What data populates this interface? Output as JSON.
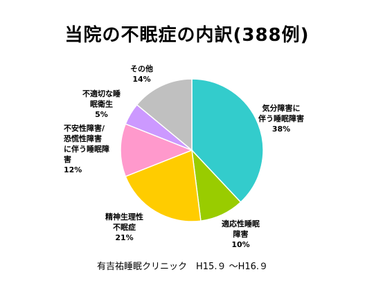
{
  "title": "当院の不眠症の内訳(388例)",
  "footer": "有吉祐睡眠クリニック　H15.９ ～H16.９",
  "chart_data": {
    "type": "pie",
    "start_angle_deg": 0,
    "direction": "clockwise",
    "slices": [
      {
        "label_lines": [
          "気分障害に",
          "伴う睡眠障害"
        ],
        "pct_label": "38%",
        "value": 38,
        "color": "#33CCCC"
      },
      {
        "label_lines": [
          "適応性睡眠",
          "障害"
        ],
        "pct_label": "10%",
        "value": 10,
        "color": "#99CC00"
      },
      {
        "label_lines": [
          "精神生理性",
          "不眠症"
        ],
        "pct_label": "21%",
        "value": 21,
        "color": "#FFCC00"
      },
      {
        "label_lines": [
          "不安性障害/",
          "恐慌性障害",
          "に伴う睡眠障",
          "害"
        ],
        "pct_label": "12%",
        "value": 12,
        "color": "#FF99CC"
      },
      {
        "label_lines": [
          "不適切な睡",
          "眠衛生"
        ],
        "pct_label": "5%",
        "value": 5,
        "color": "#CC99FF"
      },
      {
        "label_lines": [
          "その他"
        ],
        "pct_label": "14%",
        "value": 14,
        "color": "#C0C0C0"
      }
    ]
  }
}
